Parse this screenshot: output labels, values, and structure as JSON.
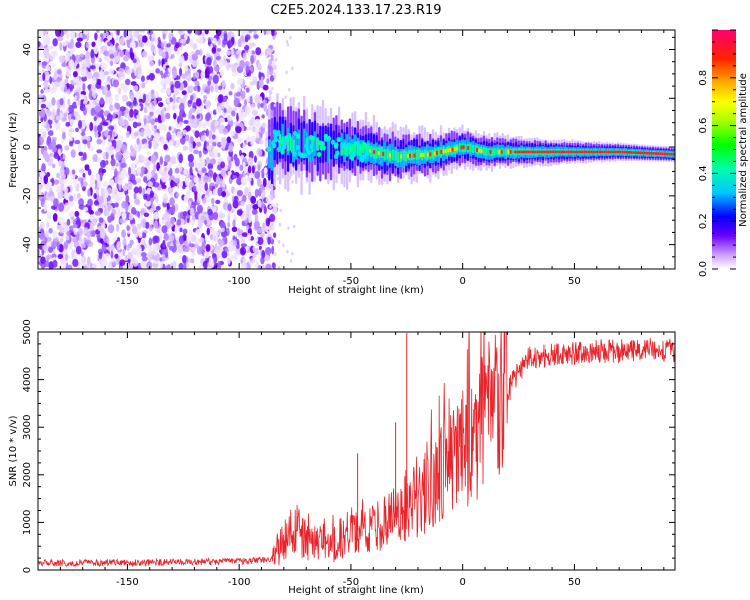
{
  "title": "C2E5.2024.133.17.23.R19",
  "chart_data": [
    {
      "type": "heatmap",
      "name": "spectrogram",
      "xlabel": "Height of straight line (km)",
      "ylabel": "Frequency (Hz)",
      "xlim": [
        -190,
        95
      ],
      "ylim": [
        -50,
        48
      ],
      "xticks": [
        -150,
        -100,
        -50,
        0,
        50
      ],
      "yticks": [
        -40,
        -20,
        0,
        20,
        40
      ],
      "colorbar": {
        "label": "Normalized spectral amplitude",
        "range": [
          0,
          1
        ],
        "ticks": [
          0.0,
          0.2,
          0.4,
          0.6,
          0.8
        ]
      },
      "features": {
        "noise_region_x": [
          -190,
          -87
        ],
        "signal_start_x": -87,
        "line_center_hz": [
          [
            -85,
            2
          ],
          [
            -60,
            0
          ],
          [
            -45,
            -1
          ],
          [
            -30,
            -4
          ],
          [
            -15,
            -3
          ],
          [
            0,
            0
          ],
          [
            10,
            -2
          ],
          [
            30,
            -2
          ],
          [
            70,
            -2
          ],
          [
            95,
            -3
          ]
        ]
      }
    },
    {
      "type": "line",
      "name": "snr",
      "xlabel": "Height of straight line (km)",
      "ylabel": "SNR (10 * v/v)",
      "xlim": [
        -190,
        95
      ],
      "ylim": [
        0,
        5000
      ],
      "xticks": [
        -150,
        -100,
        -50,
        0,
        50
      ],
      "yticks": [
        0,
        1000,
        2000,
        3000,
        4000,
        5000
      ],
      "color": "#e8232a",
      "series_profile": {
        "x": [
          -190,
          -150,
          -100,
          -85,
          -80,
          -75,
          -70,
          -60,
          -50,
          -40,
          -30,
          -20,
          -10,
          0,
          5,
          10,
          15,
          20,
          25,
          30,
          40,
          50,
          60,
          70,
          80,
          95
        ],
        "y": [
          150,
          150,
          180,
          230,
          600,
          900,
          600,
          500,
          800,
          900,
          1100,
          1500,
          2000,
          2500,
          2800,
          3200,
          3400,
          3700,
          4200,
          4450,
          4500,
          4550,
          4600,
          4600,
          4650,
          4600
        ]
      },
      "spikes": [
        {
          "x": -25,
          "y": 4980
        },
        {
          "x": 10,
          "y": 4300
        },
        {
          "x": -30,
          "y": 3100
        },
        {
          "x": -47,
          "y": 2450
        }
      ]
    }
  ]
}
